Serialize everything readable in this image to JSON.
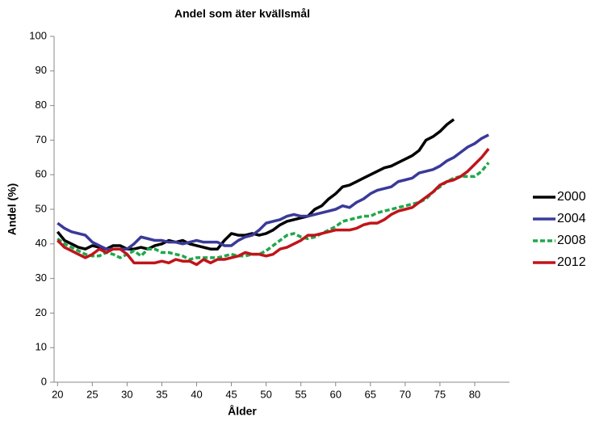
{
  "chart_data": {
    "type": "line",
    "title": "Andel som äter kvällsmål",
    "xlabel": "Ålder",
    "ylabel": "Andel (%)",
    "x": [
      20,
      21,
      22,
      23,
      24,
      25,
      26,
      27,
      28,
      29,
      30,
      31,
      32,
      33,
      34,
      35,
      36,
      37,
      38,
      39,
      40,
      41,
      42,
      43,
      44,
      45,
      46,
      47,
      48,
      49,
      50,
      51,
      52,
      53,
      54,
      55,
      56,
      57,
      58,
      59,
      60,
      61,
      62,
      63,
      64,
      65,
      66,
      67,
      68,
      69,
      70,
      71,
      72,
      73,
      74,
      75,
      76,
      77,
      78,
      79,
      80,
      81,
      82
    ],
    "series": [
      {
        "name": "2000",
        "color": "#000000",
        "dash": false,
        "values": [
          43.5,
          41,
          40,
          39,
          38.5,
          39.5,
          39,
          38.5,
          39.5,
          39.5,
          38.5,
          38.5,
          39,
          38.5,
          39.5,
          40,
          41,
          40.5,
          41,
          40,
          39.5,
          39,
          38.5,
          38.5,
          41,
          43,
          42.5,
          42.5,
          43,
          42.5,
          43,
          44,
          45.5,
          46.5,
          47,
          47.5,
          48,
          50,
          51,
          53,
          54.5,
          56.5,
          57,
          58,
          59,
          60,
          61,
          62,
          62.5,
          63.5,
          64.5,
          65.5,
          67,
          70,
          71,
          72.5,
          74.5,
          76,
          null,
          null,
          null,
          null,
          null
        ]
      },
      {
        "name": "2004",
        "color": "#3a3a9a",
        "dash": false,
        "values": [
          46,
          44.5,
          43.5,
          43,
          42.5,
          40.5,
          39.5,
          38.5,
          38.5,
          38.5,
          38.5,
          40,
          42,
          41.5,
          41,
          41,
          40.5,
          40.5,
          40,
          40.5,
          41,
          40.5,
          40.5,
          40.5,
          39.5,
          39.5,
          41,
          42,
          42.5,
          44,
          46,
          46.5,
          47,
          48,
          48.5,
          48,
          48,
          48.5,
          49,
          49.5,
          50,
          51,
          50.5,
          52,
          53,
          54.5,
          55.5,
          56,
          56.5,
          58,
          58.5,
          59,
          60.5,
          61,
          61.5,
          62.5,
          64,
          65,
          66.5,
          68,
          69,
          70.5,
          71.5
        ]
      },
      {
        "name": "2008",
        "color": "#1fa84a",
        "dash": true,
        "values": [
          41.5,
          40,
          39,
          38,
          37,
          36.5,
          36.5,
          37.5,
          37,
          36,
          37,
          38,
          36.5,
          38.5,
          38.5,
          37.5,
          37.5,
          37,
          36.5,
          35.5,
          36,
          36,
          36,
          36,
          36.5,
          37,
          36.5,
          36.5,
          37,
          37,
          38,
          39.5,
          41,
          42.5,
          43,
          42,
          41.5,
          42,
          43,
          44,
          45,
          46.5,
          47,
          47.5,
          48,
          48,
          49,
          49.5,
          50,
          50.5,
          51,
          51.5,
          52,
          53,
          55,
          56.5,
          58,
          59,
          59.5,
          59.5,
          59.5,
          61,
          63.5
        ]
      },
      {
        "name": "2012",
        "color": "#c0141a",
        "dash": false,
        "values": [
          41,
          39,
          38,
          37,
          36,
          37,
          38.5,
          37.5,
          38.5,
          38.5,
          37,
          34.5,
          34.5,
          34.5,
          34.5,
          35,
          34.5,
          35.5,
          35,
          35,
          34,
          35.5,
          34.5,
          35.5,
          35.5,
          36,
          36.5,
          37.5,
          37,
          37,
          36.5,
          37,
          38.5,
          39,
          40,
          41,
          42.5,
          42.5,
          43,
          43.5,
          44,
          44,
          44,
          44.5,
          45.5,
          46,
          46,
          47,
          48.5,
          49.5,
          50,
          50.5,
          52,
          53.5,
          55,
          57,
          58,
          58.5,
          59.5,
          61,
          63,
          65,
          67.5
        ]
      }
    ],
    "xlim": [
      19.5,
      85
    ],
    "xticks": [
      20,
      25,
      30,
      35,
      40,
      45,
      50,
      55,
      60,
      65,
      70,
      75,
      80
    ],
    "ylim": [
      0,
      100
    ],
    "yticks": [
      0,
      10,
      20,
      30,
      40,
      50,
      60,
      70,
      80,
      90,
      100
    ],
    "grid": false,
    "legend": "right"
  }
}
